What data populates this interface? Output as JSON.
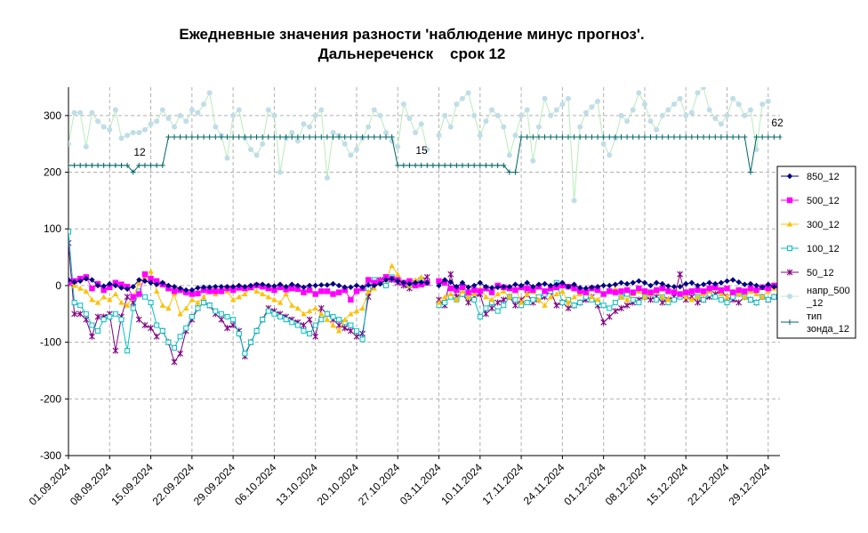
{
  "title": {
    "line1": "Ежедневные значения разности 'наблюдение минус прогноз'.",
    "line2": "Дальнереченск    срок 12"
  },
  "chart_data": {
    "type": "line",
    "title": "Ежедневные значения разности 'наблюдение минус прогноз'. Дальнереченск срок 12",
    "ylim": [
      -300,
      350
    ],
    "yticks": [
      "300",
      "200",
      "100",
      "0",
      "-100",
      "-200",
      "-300"
    ],
    "xlim": [
      "2024-09-01",
      "2024-12-31"
    ],
    "xtick_labels": [
      "01.09.2024",
      "08.09.2024",
      "15.09.2024",
      "22.09.2024",
      "29.09.2024",
      "06.10.2024",
      "13.10.2024",
      "20.10.2024",
      "27.10.2024",
      "03.11.2024",
      "10.11.2024",
      "17.11.2024",
      "24.11.2024",
      "01.12.2024",
      "08.12.2024",
      "15.12.2024",
      "22.12.2024",
      "29.12.2024"
    ],
    "grid": true,
    "legend_position": "right",
    "missing_days": [
      "2024-11-01"
    ],
    "series": [
      {
        "name": "850_12",
        "color": "#000080",
        "marker": "diamond",
        "values": [
          10,
          6,
          8,
          12,
          10,
          0,
          -1,
          3,
          0,
          -4,
          -6,
          -2,
          10,
          8,
          5,
          2,
          5,
          0,
          -2,
          -5,
          -8,
          -8,
          -4,
          -3,
          -3,
          -2,
          -2,
          -2,
          -2,
          0,
          -2,
          0,
          2,
          2,
          0,
          -1,
          2,
          -2,
          2,
          0,
          -3,
          0,
          0,
          1,
          1,
          3,
          0,
          -3,
          -3,
          0,
          -3,
          1,
          0,
          3,
          10,
          12,
          8,
          5,
          3,
          5,
          6,
          5,
          null,
          0,
          10,
          6,
          -2,
          5,
          -3,
          0,
          5,
          -2,
          -4,
          -3,
          -2,
          -2,
          2,
          0,
          5,
          -2,
          2,
          3,
          0,
          2,
          5,
          -2,
          2,
          -4,
          -5,
          -3,
          -2,
          0,
          0,
          2,
          5,
          3,
          5,
          8,
          5,
          0,
          5,
          3,
          -1,
          -2,
          -2,
          3,
          5,
          0,
          2,
          5,
          3,
          5,
          8,
          10,
          6,
          2,
          3,
          0,
          -3,
          2,
          -2,
          -3
        ]
      },
      {
        "name": "500_12",
        "color": "#ff00ff",
        "marker": "square",
        "values": [
          5,
          8,
          12,
          15,
          -5,
          3,
          -8,
          -3,
          5,
          2,
          -2,
          -20,
          -15,
          20,
          12,
          8,
          2,
          -5,
          -10,
          -8,
          -12,
          -15,
          -14,
          -8,
          -10,
          -10,
          -10,
          -5,
          -8,
          -4,
          -5,
          -3,
          0,
          -2,
          -5,
          -8,
          -3,
          -7,
          -5,
          -6,
          -12,
          -8,
          -15,
          -10,
          -10,
          -15,
          -12,
          -8,
          -25,
          -10,
          -5,
          10,
          5,
          8,
          15,
          12,
          10,
          5,
          8,
          0,
          2,
          5,
          null,
          8,
          5,
          -5,
          -8,
          -3,
          -12,
          -8,
          -10,
          -5,
          -12,
          0,
          -3,
          -5,
          -8,
          -3,
          -5,
          -8,
          -2,
          -10,
          -5,
          -3,
          0,
          -2,
          -5,
          -10,
          -12,
          -5,
          -8,
          -15,
          -10,
          -12,
          -10,
          -8,
          -12,
          -5,
          -10,
          -12,
          -8,
          -5,
          -10,
          -12,
          -15,
          -12,
          -10,
          -8,
          -10,
          -5,
          -3,
          -8,
          -5,
          -12,
          -8,
          -10,
          -5,
          -8,
          -3,
          -5,
          0,
          2
        ]
      },
      {
        "name": "300_12",
        "color": "#ffc000",
        "marker": "triangle",
        "values": [
          5,
          0,
          -5,
          -10,
          -25,
          -30,
          -20,
          -25,
          -15,
          -30,
          -35,
          -20,
          5,
          15,
          25,
          -10,
          -35,
          -40,
          -15,
          -50,
          -40,
          -25,
          -30,
          -20,
          -10,
          -15,
          -5,
          -10,
          -25,
          -20,
          -15,
          -5,
          -10,
          -15,
          -20,
          -25,
          -30,
          -15,
          -35,
          -40,
          -50,
          -45,
          -40,
          -50,
          -60,
          -70,
          -80,
          -60,
          -50,
          -45,
          -40,
          -10,
          -5,
          5,
          10,
          35,
          20,
          5,
          0,
          10,
          15,
          5,
          null,
          -30,
          -20,
          -15,
          -25,
          -10,
          -20,
          -15,
          -5,
          -20,
          -25,
          -15,
          -10,
          -20,
          -5,
          -30,
          -15,
          -10,
          -25,
          -35,
          -20,
          -15,
          -10,
          -30,
          -20,
          -15,
          -10,
          -20,
          -25,
          -15,
          -10,
          -5,
          -20,
          -25,
          -15,
          -10,
          -20,
          -15,
          -10,
          -20,
          -25,
          -10,
          -15,
          -20,
          -25,
          -20,
          -15,
          -10,
          -5,
          -15,
          -20,
          -10,
          -15,
          -20,
          -10,
          -15,
          -20,
          -10,
          -5
        ]
      },
      {
        "name": "100_12",
        "color": "#00c0c0",
        "marker": "square-open",
        "values": [
          95,
          -30,
          -35,
          -50,
          -70,
          -80,
          -60,
          -55,
          -50,
          -60,
          -115,
          -40,
          -10,
          -20,
          -30,
          -70,
          -80,
          -100,
          -110,
          -90,
          -75,
          -55,
          -40,
          -30,
          -35,
          -45,
          -50,
          -55,
          -60,
          -85,
          -120,
          -100,
          -80,
          -60,
          -45,
          -50,
          -55,
          -60,
          -65,
          -70,
          -80,
          -85,
          -70,
          -60,
          -50,
          -55,
          -60,
          -65,
          -70,
          -80,
          -95,
          -5,
          10,
          5,
          0,
          15,
          10,
          5,
          0,
          5,
          10,
          5,
          null,
          -35,
          -30,
          -20,
          -25,
          -15,
          -20,
          -25,
          -55,
          -40,
          -30,
          -45,
          -35,
          -20,
          -25,
          -35,
          -30,
          -25,
          -20,
          -15,
          -10,
          5,
          -30,
          -25,
          -35,
          -30,
          -20,
          -25,
          -30,
          -35,
          -40,
          -30,
          -20,
          -15,
          -25,
          -30,
          -20,
          -15,
          -25,
          -20,
          -30,
          -25,
          -20,
          -15,
          -10,
          -20,
          -25,
          -15,
          -20,
          -25,
          -30,
          -20,
          -15,
          -20,
          -25,
          -30,
          -20,
          -25,
          -20,
          -25
        ]
      },
      {
        "name": "50_12",
        "color": "#800080",
        "marker": "star",
        "values": [
          75,
          -50,
          -50,
          -60,
          -90,
          -55,
          -55,
          -50,
          -115,
          -55,
          -20,
          -30,
          -60,
          -70,
          -75,
          -90,
          -80,
          -100,
          -135,
          -120,
          -80,
          -60,
          -40,
          -30,
          -35,
          -50,
          -60,
          -75,
          -70,
          -80,
          -125,
          -100,
          -80,
          -60,
          -40,
          -45,
          -50,
          -55,
          -60,
          -65,
          -70,
          -60,
          -90,
          -40,
          -50,
          -60,
          -70,
          -75,
          -80,
          -90,
          -85,
          -20,
          5,
          10,
          15,
          10,
          5,
          0,
          -5,
          5,
          10,
          15,
          null,
          -25,
          -35,
          20,
          -20,
          -15,
          -30,
          -20,
          -15,
          -50,
          -40,
          -30,
          -25,
          -20,
          -35,
          -25,
          -15,
          -30,
          -25,
          -20,
          -10,
          -35,
          -30,
          -40,
          -35,
          -30,
          -25,
          -20,
          -35,
          -65,
          -55,
          -45,
          -40,
          -35,
          -30,
          -25,
          -20,
          -25,
          -20,
          -30,
          -25,
          -20,
          20,
          -25,
          -20,
          -30,
          -25,
          -20,
          -15,
          -10,
          -20,
          -25,
          -30,
          -20,
          -25,
          -30,
          -20,
          -25,
          -20,
          -15
        ]
      },
      {
        "name": "напр_500_12",
        "color": "#c0dde8",
        "marker": "circle",
        "line_color": "#b8ecb8",
        "values": [
          250,
          305,
          305,
          245,
          305,
          290,
          280,
          275,
          310,
          260,
          265,
          270,
          270,
          275,
          285,
          290,
          310,
          295,
          280,
          300,
          290,
          310,
          305,
          320,
          340,
          280,
          265,
          225,
          300,
          310,
          260,
          240,
          230,
          250,
          310,
          300,
          200,
          260,
          270,
          255,
          285,
          280,
          300,
          310,
          190,
          270,
          265,
          250,
          230,
          240,
          260,
          280,
          310,
          300,
          270,
          255,
          245,
          320,
          295,
          270,
          285,
          240,
          null,
          265,
          300,
          280,
          320,
          330,
          340,
          300,
          265,
          290,
          310,
          300,
          280,
          230,
          265,
          300,
          310,
          220,
          280,
          330,
          300,
          310,
          320,
          330,
          150,
          280,
          305,
          315,
          325,
          250,
          230,
          260,
          300,
          290,
          310,
          340,
          320,
          290,
          275,
          300,
          310,
          320,
          330,
          300,
          305,
          340,
          350,
          310,
          295,
          285,
          300,
          330,
          320,
          300,
          310,
          240,
          320,
          325
        ]
      },
      {
        "name": "тип зонда_12",
        "color": "#006666",
        "marker": "plus",
        "values": [
          212,
          212,
          212,
          212,
          212,
          212,
          212,
          212,
          212,
          212,
          212,
          200,
          212,
          212,
          212,
          212,
          212,
          262,
          262,
          262,
          262,
          262,
          262,
          262,
          262,
          262,
          262,
          262,
          262,
          262,
          262,
          262,
          262,
          262,
          262,
          262,
          262,
          262,
          262,
          262,
          262,
          262,
          262,
          262,
          262,
          262,
          262,
          262,
          262,
          262,
          262,
          262,
          262,
          262,
          262,
          262,
          212,
          212,
          212,
          212,
          212,
          212,
          212,
          212,
          212,
          212,
          212,
          212,
          212,
          212,
          212,
          212,
          212,
          212,
          212,
          200,
          200,
          262,
          262,
          262,
          262,
          262,
          262,
          262,
          262,
          262,
          262,
          262,
          262,
          262,
          262,
          262,
          262,
          262,
          262,
          262,
          262,
          262,
          262,
          262,
          262,
          262,
          262,
          262,
          262,
          262,
          262,
          262,
          262,
          262,
          262,
          262,
          262,
          262,
          262,
          262,
          200,
          262,
          262,
          262,
          262,
          262,
          262,
          262,
          262
        ]
      }
    ],
    "data_labels": [
      "12",
      "15",
      "62"
    ]
  }
}
